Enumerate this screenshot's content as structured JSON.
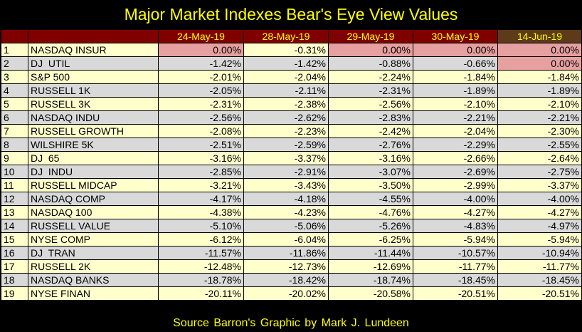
{
  "title": "Major Market Indexes Bear's Eye View Values",
  "footer": "Source Barron's   Graphic by Mark J. Lundeen",
  "colors": {
    "header_bg": "#800000",
    "header_last_bg": "#5c3a1a",
    "header_text": "#ffff00",
    "odd_row": "#ffffcc",
    "even_row": "#d9d9d9",
    "zero_highlight": "#e6a0a0"
  },
  "chart_data": {
    "type": "table",
    "columns": [
      "24-May-19",
      "28-May-19",
      "29-May-19",
      "30-May-19",
      "14-Jun-19"
    ],
    "rows": [
      {
        "n": "1",
        "name": "NASDAQ INSUR",
        "values": [
          "0.00%",
          "-0.31%",
          "0.00%",
          "0.00%",
          "0.00%"
        ],
        "highlight": [
          true,
          false,
          true,
          true,
          true
        ]
      },
      {
        "n": "2",
        "name": "DJ  UTIL",
        "values": [
          "-1.42%",
          "-1.42%",
          "-0.88%",
          "-0.66%",
          "0.00%"
        ],
        "highlight": [
          false,
          false,
          false,
          false,
          true
        ]
      },
      {
        "n": "3",
        "name": "S&P 500",
        "values": [
          "-2.01%",
          "-2.04%",
          "-2.24%",
          "-1.84%",
          "-1.84%"
        ],
        "highlight": [
          false,
          false,
          false,
          false,
          false
        ]
      },
      {
        "n": "4",
        "name": "RUSSELL 1K",
        "values": [
          "-2.05%",
          "-2.11%",
          "-2.31%",
          "-1.89%",
          "-1.89%"
        ],
        "highlight": [
          false,
          false,
          false,
          false,
          false
        ]
      },
      {
        "n": "5",
        "name": "RUSSELL 3K",
        "values": [
          "-2.31%",
          "-2.38%",
          "-2.56%",
          "-2.10%",
          "-2.10%"
        ],
        "highlight": [
          false,
          false,
          false,
          false,
          false
        ]
      },
      {
        "n": "6",
        "name": "NASDAQ INDU",
        "values": [
          "-2.56%",
          "-2.62%",
          "-2.83%",
          "-2.21%",
          "-2.21%"
        ],
        "highlight": [
          false,
          false,
          false,
          false,
          false
        ]
      },
      {
        "n": "7",
        "name": "RUSSELL GROWTH",
        "values": [
          "-2.08%",
          "-2.23%",
          "-2.42%",
          "-2.04%",
          "-2.30%"
        ],
        "highlight": [
          false,
          false,
          false,
          false,
          false
        ]
      },
      {
        "n": "8",
        "name": "WILSHIRE 5K",
        "values": [
          "-2.51%",
          "-2.59%",
          "-2.76%",
          "-2.29%",
          "-2.55%"
        ],
        "highlight": [
          false,
          false,
          false,
          false,
          false
        ]
      },
      {
        "n": "9",
        "name": "DJ  65",
        "values": [
          "-3.16%",
          "-3.37%",
          "-3.16%",
          "-2.66%",
          "-2.64%"
        ],
        "highlight": [
          false,
          false,
          false,
          false,
          false
        ]
      },
      {
        "n": "10",
        "name": "DJ  INDU",
        "values": [
          "-2.85%",
          "-2.91%",
          "-3.07%",
          "-2.69%",
          "-2.75%"
        ],
        "highlight": [
          false,
          false,
          false,
          false,
          false
        ]
      },
      {
        "n": "11",
        "name": "RUSSELL MIDCAP",
        "values": [
          "-3.21%",
          "-3.43%",
          "-3.50%",
          "-2.99%",
          "-3.37%"
        ],
        "highlight": [
          false,
          false,
          false,
          false,
          false
        ]
      },
      {
        "n": "12",
        "name": "NASDAQ COMP",
        "values": [
          "-4.17%",
          "-4.18%",
          "-4.55%",
          "-4.00%",
          "-4.00%"
        ],
        "highlight": [
          false,
          false,
          false,
          false,
          false
        ]
      },
      {
        "n": "13",
        "name": "NASDAQ 100",
        "values": [
          "-4.38%",
          "-4.23%",
          "-4.76%",
          "-4.27%",
          "-4.27%"
        ],
        "highlight": [
          false,
          false,
          false,
          false,
          false
        ]
      },
      {
        "n": "14",
        "name": "RUSSELL VALUE",
        "values": [
          "-5.10%",
          "-5.06%",
          "-5.26%",
          "-4.83%",
          "-4.97%"
        ],
        "highlight": [
          false,
          false,
          false,
          false,
          false
        ]
      },
      {
        "n": "15",
        "name": "NYSE COMP",
        "values": [
          "-6.12%",
          "-6.04%",
          "-6.25%",
          "-5.94%",
          "-5.94%"
        ],
        "highlight": [
          false,
          false,
          false,
          false,
          false
        ]
      },
      {
        "n": "16",
        "name": "DJ  TRAN",
        "values": [
          "-11.57%",
          "-11.86%",
          "-11.44%",
          "-10.57%",
          "-10.94%"
        ],
        "highlight": [
          false,
          false,
          false,
          false,
          false
        ]
      },
      {
        "n": "17",
        "name": "RUSSELL 2K",
        "values": [
          "-12.48%",
          "-12.73%",
          "-12.69%",
          "-11.77%",
          "-11.77%"
        ],
        "highlight": [
          false,
          false,
          false,
          false,
          false
        ]
      },
      {
        "n": "18",
        "name": "NASDAQ BANKS",
        "values": [
          "-18.78%",
          "-18.42%",
          "-18.74%",
          "-18.45%",
          "-18.45%"
        ],
        "highlight": [
          false,
          false,
          false,
          false,
          false
        ]
      },
      {
        "n": "19",
        "name": "NYSE FINAN",
        "values": [
          "-20.11%",
          "-20.02%",
          "-20.58%",
          "-20.51%",
          "-20.51%"
        ],
        "highlight": [
          false,
          false,
          false,
          false,
          false
        ]
      }
    ]
  }
}
